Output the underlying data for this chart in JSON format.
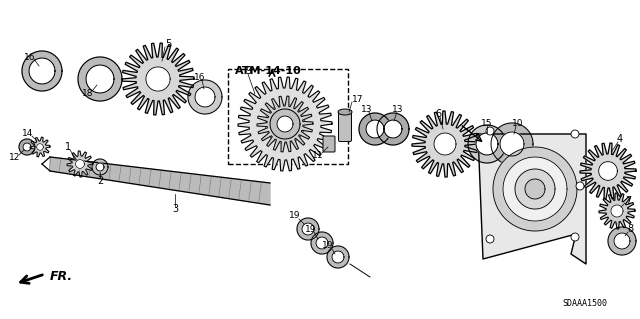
{
  "background_color": "#ffffff",
  "diagram_code": "SDAAA1500",
  "atm_label": "ATM-14-10",
  "fr_label": "FR.",
  "figsize": [
    6.4,
    3.19
  ],
  "dpi": 100,
  "gear_color": "#d8d8d8",
  "ring_color": "#c0c0c0",
  "shaft_color": "#bbbbbb",
  "housing_color": "#e8e8e8",
  "line_color": "#000000"
}
